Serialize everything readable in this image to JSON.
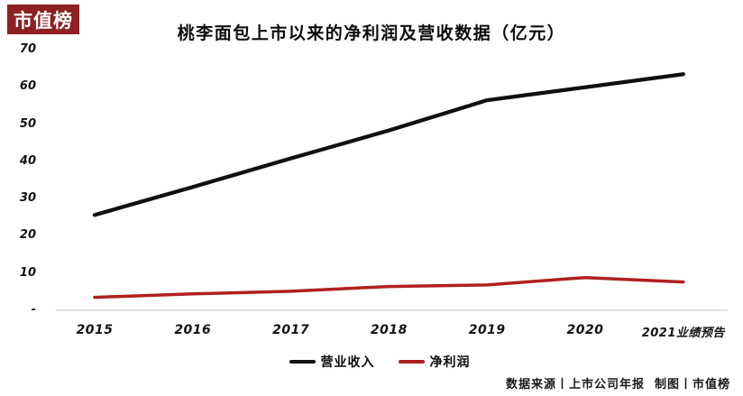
{
  "brand": {
    "logo_text": "市值榜",
    "logo_bg_color": "#8e2023",
    "logo_text_color": "#ffffff"
  },
  "title": "桃李面包上市以来的净利润及营收数据（亿元）",
  "footer": {
    "source_text": "数据来源丨上市公司年报  制图丨市值榜"
  },
  "colors": {
    "revenue_line": "#101010",
    "profit_line": "#b02020",
    "baseline": "#e3e0e0"
  },
  "chart_data": {
    "type": "line",
    "title": "桃李面包上市以来的净利润及营收数据（亿元）",
    "unit": "亿元",
    "categories": [
      "2015",
      "2016",
      "2017",
      "2018",
      "2019",
      "2020",
      "2021业绩预告"
    ],
    "series": [
      {
        "name": "营业收入",
        "color": "#101010",
        "values": [
          25.6,
          33.1,
          40.8,
          48.3,
          56.4,
          59.9,
          63.4
        ]
      },
      {
        "name": "净利润",
        "color": "#b02020",
        "values": [
          3.5,
          4.4,
          5.1,
          6.4,
          6.8,
          8.8,
          7.6
        ]
      }
    ],
    "ylim": [
      0,
      70
    ],
    "yticks": [
      {
        "label": "70",
        "value": 70
      },
      {
        "label": "60",
        "value": 60
      },
      {
        "label": "50",
        "value": 50
      },
      {
        "label": "40",
        "value": 40
      },
      {
        "label": "30",
        "value": 30
      },
      {
        "label": "20",
        "value": 20
      },
      {
        "label": "10",
        "value": 10
      },
      {
        "label": "-",
        "value": 0
      }
    ],
    "grid": false,
    "legend_position": "bottom-center"
  }
}
